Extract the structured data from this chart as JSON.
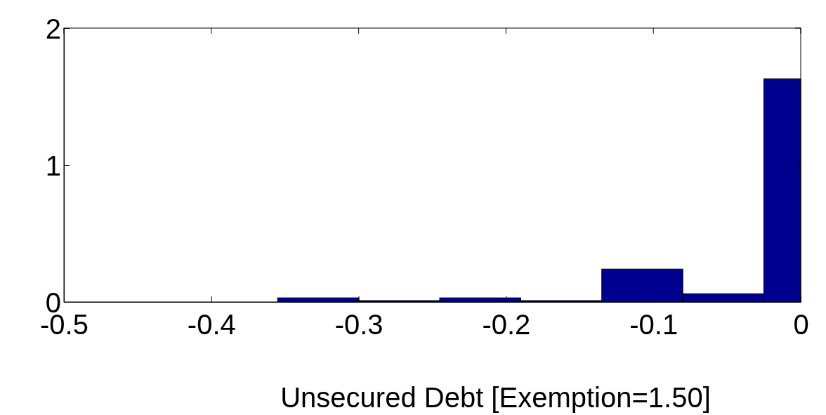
{
  "chart_data": {
    "type": "histogram",
    "xlabel": "Unsecured Debt [Exemption=1.50]",
    "bins": [
      -0.355,
      -0.3,
      -0.245,
      -0.19,
      -0.135,
      -0.08,
      -0.025,
      0
    ],
    "values": [
      0.03,
      0.01,
      0.03,
      0.01,
      0.24,
      0.06,
      1.63
    ],
    "color": "#00008f",
    "xlim": [
      -0.5,
      0
    ],
    "xticks": [
      -0.5,
      -0.4,
      -0.3,
      -0.2,
      -0.1,
      0
    ],
    "ylim": [
      0,
      2
    ],
    "yticks": [
      0,
      1,
      2
    ],
    "grid": false
  }
}
